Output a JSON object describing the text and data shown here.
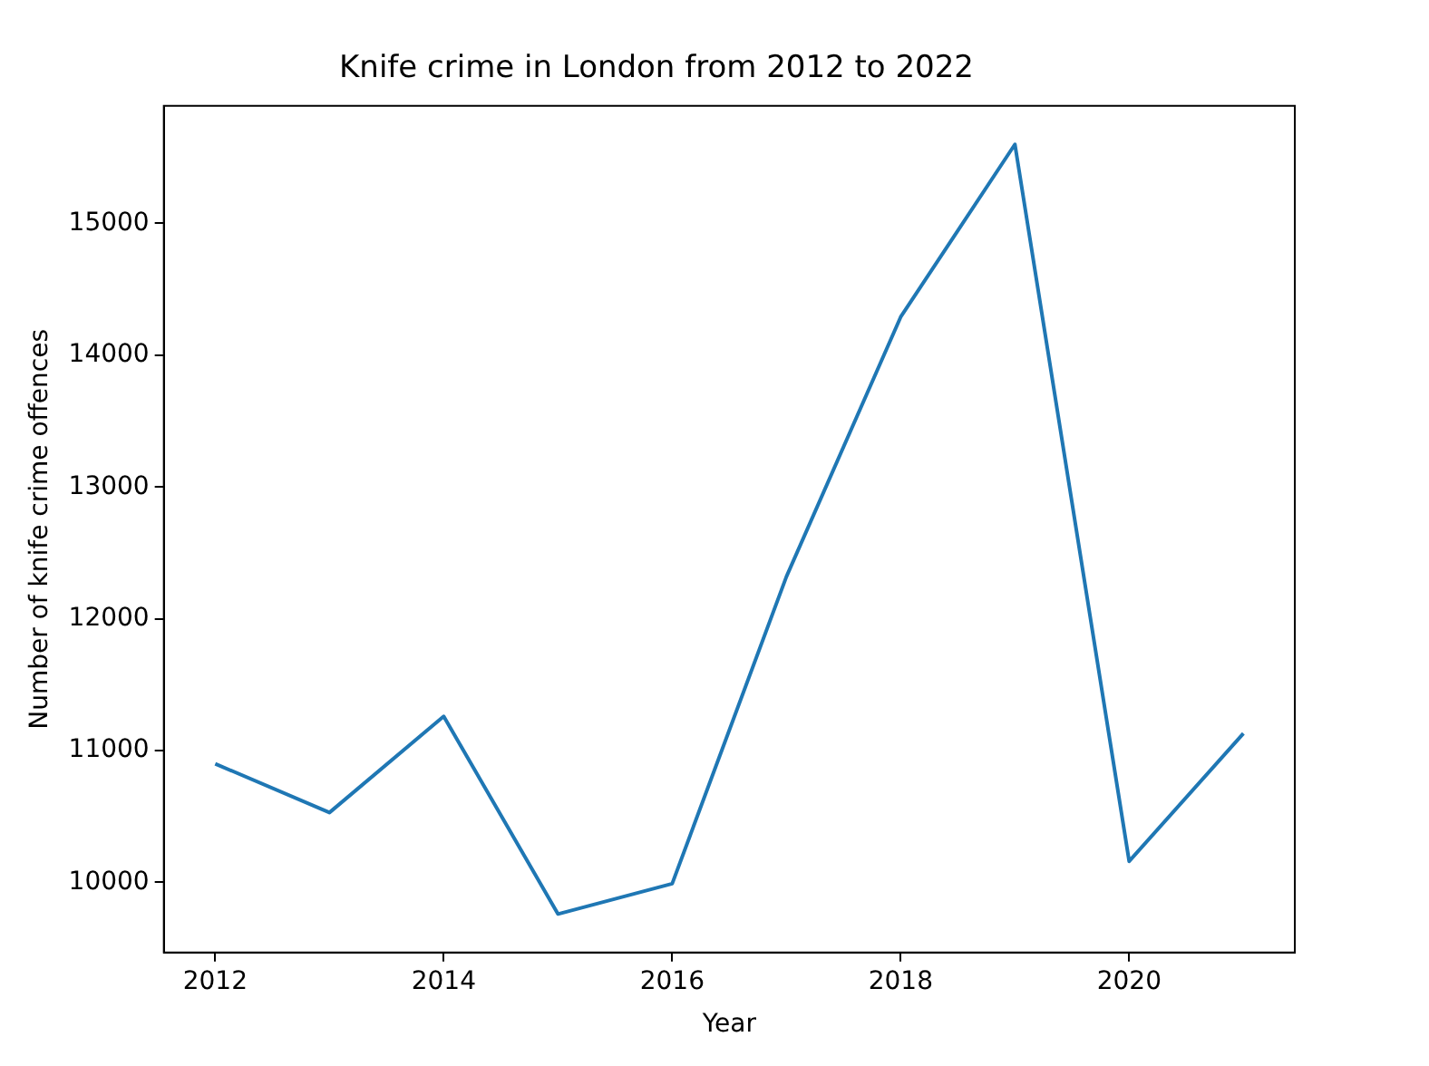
{
  "chart_data": {
    "type": "line",
    "title": "Knife crime in London from 2012 to 2022",
    "xlabel": "Year",
    "ylabel": "Number of knife crime offences",
    "x": [
      2012,
      2013,
      2014,
      2015,
      2016,
      2017,
      2018,
      2019,
      2020,
      2021
    ],
    "series": [
      {
        "color": "#1f77b4",
        "values": [
          10900,
          10530,
          11260,
          9760,
          9990,
          12320,
          14290,
          15600,
          10160,
          11130
        ]
      }
    ],
    "xlim": [
      2011.55,
      2021.45
    ],
    "xticks": [
      2012,
      2014,
      2016,
      2018,
      2020
    ],
    "ylim": [
      9468,
      15892
    ],
    "yticks": [
      10000,
      11000,
      12000,
      13000,
      14000,
      15000
    ],
    "grid": false,
    "legend": false,
    "marker": "none",
    "line_style": "solid"
  }
}
